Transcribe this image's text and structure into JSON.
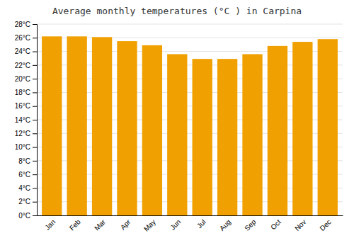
{
  "chart_data": {
    "type": "bar",
    "title": "Average monthly temperatures (°C ) in Carpina",
    "categories": [
      "Jan",
      "Feb",
      "Mar",
      "Apr",
      "May",
      "Jun",
      "Jul",
      "Aug",
      "Sep",
      "Oct",
      "Nov",
      "Dec"
    ],
    "values": [
      26.2,
      26.2,
      26.1,
      25.5,
      24.9,
      23.6,
      22.9,
      22.9,
      23.6,
      24.8,
      25.4,
      25.8
    ],
    "color": "#F0A000",
    "ylim": [
      0,
      28
    ],
    "yticks": [
      {
        "value": 0,
        "label": "0°C"
      },
      {
        "value": 2,
        "label": "2°C"
      },
      {
        "value": 4,
        "label": "4°C"
      },
      {
        "value": 6,
        "label": "6°C"
      },
      {
        "value": 8,
        "label": "8°C"
      },
      {
        "value": 10,
        "label": "10°C"
      },
      {
        "value": 12,
        "label": "12°C"
      },
      {
        "value": 14,
        "label": "14°C"
      },
      {
        "value": 16,
        "label": "16°C"
      },
      {
        "value": 18,
        "label": "18°C"
      },
      {
        "value": 20,
        "label": "20°C"
      },
      {
        "value": 22,
        "label": "22°C"
      },
      {
        "value": 24,
        "label": "24°C"
      },
      {
        "value": 26,
        "label": "26°C"
      },
      {
        "value": 28,
        "label": "28°C"
      }
    ],
    "grid": true
  }
}
